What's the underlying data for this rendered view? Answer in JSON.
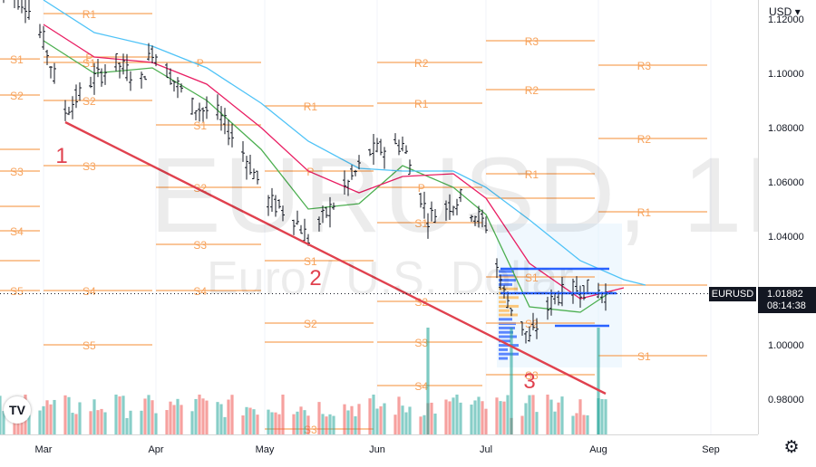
{
  "watermark": {
    "symbol": "EURUSD, 1D",
    "name": "Euro / U.S. Dollar"
  },
  "currency_label": "USD",
  "price_tag": {
    "symbol": "EURUSD",
    "value": "1.01882",
    "countdown": "08:14:38"
  },
  "logo_text": "TV",
  "settings_icon": "gear-icon",
  "colors": {
    "bull_volume": "#26a69a",
    "bear_volume": "#ef5350",
    "pivot": "#f7a35c",
    "trend": "#e0414e",
    "ma_fast": "#4caf50",
    "ma_mid": "#e91e63",
    "ma_slow": "#4fc3f7",
    "profile": "#2962ff"
  },
  "chart_data": {
    "type": "candlestick",
    "y_range": [
      0.967,
      1.127
    ],
    "price_ticks": [
      "1.12000",
      "1.10000",
      "1.08000",
      "1.06000",
      "1.04000",
      "1.02000",
      "1.00000",
      "0.98000"
    ],
    "price_tick_values": [
      1.12,
      1.1,
      1.08,
      1.06,
      1.04,
      1.02,
      1.0,
      0.98
    ],
    "x_range": [
      "2022-02-17",
      "2022-09-14"
    ],
    "month_labels": [
      "Mar",
      "Apr",
      "May",
      "Jun",
      "Jul",
      "Aug",
      "Sep"
    ],
    "month_dates": [
      "2022-03-01",
      "2022-04-01",
      "2022-05-01",
      "2022-06-01",
      "2022-07-01",
      "2022-08-01",
      "2022-09-01"
    ],
    "last_price": 1.01882,
    "ohlc_waypoints": [
      [
        "2022-02-17",
        1.131
      ],
      [
        "2022-02-24",
        1.126
      ],
      [
        "2022-03-01",
        1.112
      ],
      [
        "2022-03-07",
        1.086
      ],
      [
        "2022-03-14",
        1.097
      ],
      [
        "2022-03-21",
        1.104
      ],
      [
        "2022-03-28",
        1.097
      ],
      [
        "2022-03-31",
        1.109
      ],
      [
        "2022-04-04",
        1.101
      ],
      [
        "2022-04-11",
        1.088
      ],
      [
        "2022-04-18",
        1.085
      ],
      [
        "2022-04-25",
        1.071
      ],
      [
        "2022-05-02",
        1.053
      ],
      [
        "2022-05-09",
        1.047
      ],
      [
        "2022-05-13",
        1.039
      ],
      [
        "2022-05-20",
        1.052
      ],
      [
        "2022-05-30",
        1.071
      ],
      [
        "2022-06-08",
        1.074
      ],
      [
        "2022-06-15",
        1.047
      ],
      [
        "2022-06-24",
        1.054
      ],
      [
        "2022-07-01",
        1.044
      ],
      [
        "2022-07-06",
        1.019
      ],
      [
        "2022-07-13",
        1.002
      ],
      [
        "2022-07-20",
        1.018
      ],
      [
        "2022-07-27",
        1.021
      ],
      [
        "2022-08-03",
        1.019
      ]
    ],
    "moving_averages": [
      {
        "color": "#4caf50",
        "points": [
          [
            "2022-03-01",
            1.112
          ],
          [
            "2022-03-15",
            1.1
          ],
          [
            "2022-03-31",
            1.102
          ],
          [
            "2022-04-15",
            1.09
          ],
          [
            "2022-04-30",
            1.072
          ],
          [
            "2022-05-13",
            1.05
          ],
          [
            "2022-05-27",
            1.052
          ],
          [
            "2022-06-08",
            1.066
          ],
          [
            "2022-06-22",
            1.058
          ],
          [
            "2022-07-01",
            1.048
          ],
          [
            "2022-07-13",
            1.014
          ],
          [
            "2022-07-27",
            1.012
          ],
          [
            "2022-08-05",
            1.02
          ]
        ]
      },
      {
        "color": "#e91e63",
        "points": [
          [
            "2022-03-01",
            1.118
          ],
          [
            "2022-03-15",
            1.106
          ],
          [
            "2022-03-31",
            1.104
          ],
          [
            "2022-04-15",
            1.096
          ],
          [
            "2022-04-30",
            1.08
          ],
          [
            "2022-05-13",
            1.064
          ],
          [
            "2022-05-27",
            1.056
          ],
          [
            "2022-06-08",
            1.062
          ],
          [
            "2022-06-22",
            1.063
          ],
          [
            "2022-07-01",
            1.054
          ],
          [
            "2022-07-13",
            1.03
          ],
          [
            "2022-07-27",
            1.017
          ],
          [
            "2022-08-08",
            1.021
          ]
        ]
      },
      {
        "color": "#4fc3f7",
        "points": [
          [
            "2022-03-01",
            1.127
          ],
          [
            "2022-03-15",
            1.115
          ],
          [
            "2022-03-31",
            1.11
          ],
          [
            "2022-04-15",
            1.102
          ],
          [
            "2022-04-30",
            1.089
          ],
          [
            "2022-05-13",
            1.075
          ],
          [
            "2022-05-27",
            1.065
          ],
          [
            "2022-06-08",
            1.064
          ],
          [
            "2022-06-22",
            1.064
          ],
          [
            "2022-07-01",
            1.058
          ],
          [
            "2022-07-13",
            1.046
          ],
          [
            "2022-07-27",
            1.031
          ],
          [
            "2022-08-08",
            1.024
          ],
          [
            "2022-08-14",
            1.022
          ]
        ]
      }
    ],
    "pivot_levels": [
      {
        "label": "R1",
        "period": [
          "2022-02-17",
          "2022-02-28"
        ],
        "value": 1.128
      },
      {
        "label": "S1",
        "period": [
          "2022-02-17",
          "2022-02-28"
        ],
        "value": 1.1053
      },
      {
        "label": "S2",
        "period": [
          "2022-02-17",
          "2022-02-28"
        ],
        "value": 1.092
      },
      {
        "label": "",
        "period": [
          "2022-02-17",
          "2022-02-28"
        ],
        "value": 1.072
      },
      {
        "label": "S3",
        "period": [
          "2022-02-17",
          "2022-02-28"
        ],
        "value": 1.064
      },
      {
        "label": "",
        "period": [
          "2022-02-17",
          "2022-02-28"
        ],
        "value": 1.051
      },
      {
        "label": "S4",
        "period": [
          "2022-02-17",
          "2022-02-28"
        ],
        "value": 1.042
      },
      {
        "label": "",
        "period": [
          "2022-02-17",
          "2022-02-28"
        ],
        "value": 1.031
      },
      {
        "label": "S5",
        "period": [
          "2022-02-17",
          "2022-02-28"
        ],
        "value": 1.02
      },
      {
        "label": "R2",
        "period": [
          "2022-03-01",
          "2022-03-31"
        ],
        "value": 1.144
      },
      {
        "label": "R1",
        "period": [
          "2022-03-01",
          "2022-03-31"
        ],
        "value": 1.122
      },
      {
        "label": "P",
        "period": [
          "2022-03-01",
          "2022-03-31"
        ],
        "value": 1.106
      },
      {
        "label": "S1",
        "period": [
          "2022-03-01",
          "2022-03-31"
        ],
        "value": 1.104
      },
      {
        "label": "S2",
        "period": [
          "2022-03-01",
          "2022-03-31"
        ],
        "value": 1.09
      },
      {
        "label": "S3",
        "period": [
          "2022-03-01",
          "2022-03-31"
        ],
        "value": 1.066
      },
      {
        "label": "S4",
        "period": [
          "2022-03-01",
          "2022-03-31"
        ],
        "value": 1.02
      },
      {
        "label": "S5",
        "period": [
          "2022-03-01",
          "2022-03-31"
        ],
        "value": 1.0
      },
      {
        "label": "R1",
        "period": [
          "2022-04-01",
          "2022-04-30"
        ],
        "value": 1.132
      },
      {
        "label": "P",
        "period": [
          "2022-04-01",
          "2022-04-30"
        ],
        "value": 1.104
      },
      {
        "label": "S1",
        "period": [
          "2022-04-01",
          "2022-04-30"
        ],
        "value": 1.081
      },
      {
        "label": "S2",
        "period": [
          "2022-04-01",
          "2022-04-30"
        ],
        "value": 1.058
      },
      {
        "label": "S3",
        "period": [
          "2022-04-01",
          "2022-04-30"
        ],
        "value": 1.037
      },
      {
        "label": "S4",
        "period": [
          "2022-04-01",
          "2022-04-30"
        ],
        "value": 1.02
      },
      {
        "label": "R2",
        "period": [
          "2022-05-01",
          "2022-05-31"
        ],
        "value": 1.128
      },
      {
        "label": "R1",
        "period": [
          "2022-05-01",
          "2022-05-31"
        ],
        "value": 1.088
      },
      {
        "label": "P",
        "period": [
          "2022-05-01",
          "2022-05-31"
        ],
        "value": 1.064
      },
      {
        "label": "S1",
        "period": [
          "2022-05-01",
          "2022-05-31"
        ],
        "value": 1.031
      },
      {
        "label": "S2",
        "period": [
          "2022-05-01",
          "2022-05-31"
        ],
        "value": 1.008
      },
      {
        "label": "",
        "period": [
          "2022-05-01",
          "2022-05-31"
        ],
        "value": 1.001
      },
      {
        "label": "S3",
        "period": [
          "2022-05-01",
          "2022-05-31"
        ],
        "value": 0.969
      },
      {
        "label": "R2",
        "period": [
          "2022-06-01",
          "2022-06-30"
        ],
        "value": 1.104
      },
      {
        "label": "R1",
        "period": [
          "2022-06-01",
          "2022-06-30"
        ],
        "value": 1.089
      },
      {
        "label": "P",
        "period": [
          "2022-06-01",
          "2022-06-30"
        ],
        "value": 1.058
      },
      {
        "label": "S1",
        "period": [
          "2022-06-01",
          "2022-06-30"
        ],
        "value": 1.045
      },
      {
        "label": "S2",
        "period": [
          "2022-06-01",
          "2022-06-30"
        ],
        "value": 1.016
      },
      {
        "label": "S3",
        "period": [
          "2022-06-01",
          "2022-06-30"
        ],
        "value": 1.001
      },
      {
        "label": "S4",
        "period": [
          "2022-06-01",
          "2022-06-30"
        ],
        "value": 0.985
      },
      {
        "label": "R3",
        "period": [
          "2022-07-01",
          "2022-07-31"
        ],
        "value": 1.112
      },
      {
        "label": "R2",
        "period": [
          "2022-07-01",
          "2022-07-31"
        ],
        "value": 1.094
      },
      {
        "label": "R1",
        "period": [
          "2022-07-01",
          "2022-07-31"
        ],
        "value": 1.063
      },
      {
        "label": "",
        "period": [
          "2022-07-01",
          "2022-07-31"
        ],
        "value": 1.054
      },
      {
        "label": "S1",
        "period": [
          "2022-07-01",
          "2022-07-31"
        ],
        "value": 1.025
      },
      {
        "label": "S2",
        "period": [
          "2022-07-01",
          "2022-07-31"
        ],
        "value": 1.008
      },
      {
        "label": "S3",
        "period": [
          "2022-07-01",
          "2022-07-31"
        ],
        "value": 0.989
      },
      {
        "label": "R3",
        "period": [
          "2022-08-01",
          "2022-08-31"
        ],
        "value": 1.103
      },
      {
        "label": "R2",
        "period": [
          "2022-08-01",
          "2022-08-31"
        ],
        "value": 1.076
      },
      {
        "label": "R1",
        "period": [
          "2022-08-01",
          "2022-08-31"
        ],
        "value": 1.049
      },
      {
        "label": "",
        "period": [
          "2022-08-01",
          "2022-08-31"
        ],
        "value": 1.022
      },
      {
        "label": "S1",
        "period": [
          "2022-08-01",
          "2022-08-31"
        ],
        "value": 0.996
      }
    ],
    "trend_line": {
      "from": [
        "2022-03-07",
        1.082
      ],
      "to": [
        "2022-08-03",
        0.982
      ]
    },
    "wave_labels": [
      {
        "text": "1",
        "at": [
          "2022-03-06",
          1.067
        ]
      },
      {
        "text": "2",
        "at": [
          "2022-05-15",
          1.022
        ]
      },
      {
        "text": "3",
        "at": [
          "2022-07-13",
          0.984
        ]
      }
    ],
    "volume_profile": {
      "period": [
        "2022-07-05",
        "2022-08-05"
      ],
      "range": [
        0.995,
        1.028
      ]
    },
    "range_levels": [
      {
        "value": 1.028,
        "period": [
          "2022-07-05",
          "2022-08-04"
        ]
      },
      {
        "value": 1.019,
        "period": [
          "2022-07-05",
          "2022-08-06"
        ]
      },
      {
        "value": 1.007,
        "period": [
          "2022-07-20",
          "2022-08-04"
        ]
      }
    ]
  }
}
